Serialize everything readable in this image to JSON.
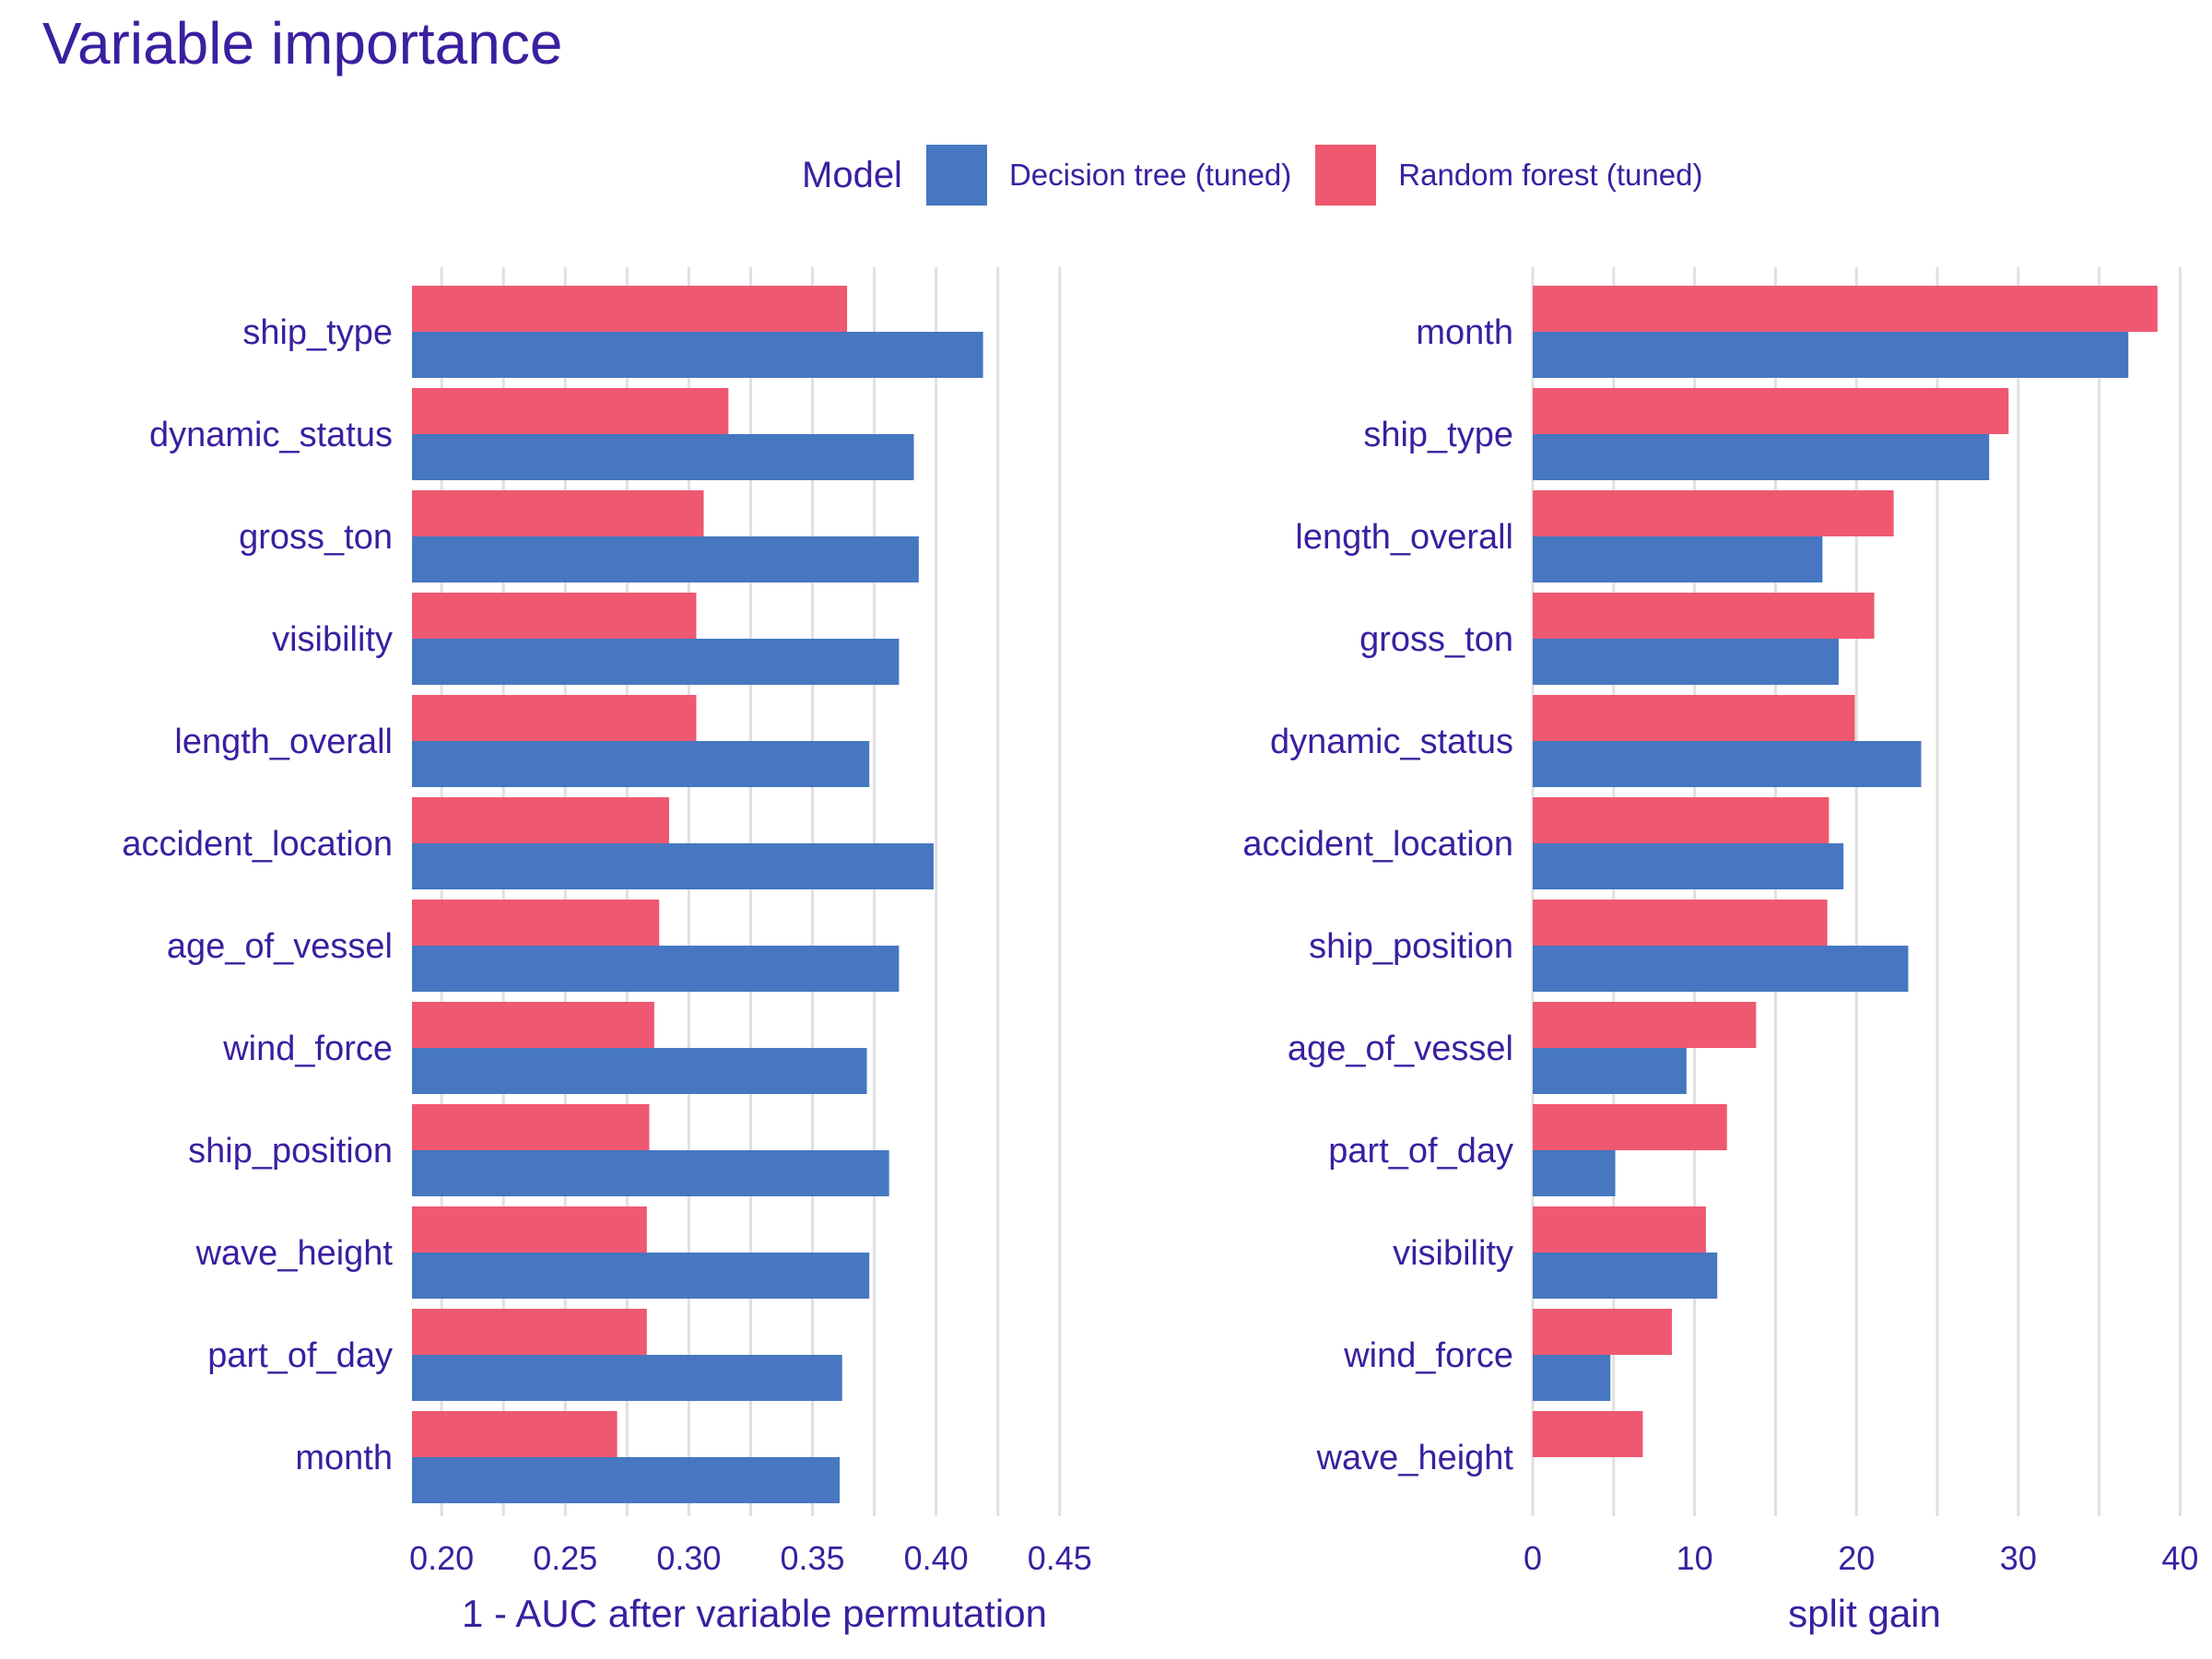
{
  "title": "Variable importance",
  "legend": {
    "title": "Model",
    "items": [
      {
        "label": "Decision tree (tuned)",
        "color": "#4677c0"
      },
      {
        "label": "Random forest (tuned)",
        "color": "#ef5871"
      }
    ]
  },
  "chart_data": [
    {
      "type": "bar",
      "orientation": "horizontal",
      "xlabel": "1 - AUC after variable permutation",
      "xlim": [
        0.188,
        0.465
      ],
      "xticks": [
        0.2,
        0.25,
        0.3,
        0.35,
        0.4,
        0.45
      ],
      "xtick_labels": [
        "0.20",
        "0.25",
        "0.30",
        "0.35",
        "0.40",
        "0.45"
      ],
      "categories": [
        "ship_type",
        "dynamic_status",
        "gross_ton",
        "visibility",
        "length_overall",
        "accident_location",
        "age_of_vessel",
        "wind_force",
        "ship_position",
        "wave_height",
        "part_of_day",
        "month"
      ],
      "series": [
        {
          "name": "Random forest (tuned)",
          "color": "#ef5871",
          "values": [
            0.364,
            0.316,
            0.306,
            0.303,
            0.303,
            0.292,
            0.288,
            0.286,
            0.284,
            0.283,
            0.283,
            0.271
          ]
        },
        {
          "name": "Decision tree (tuned)",
          "color": "#4677c0",
          "values": [
            0.419,
            0.391,
            0.393,
            0.385,
            0.373,
            0.399,
            0.385,
            0.372,
            0.381,
            0.373,
            0.362,
            0.361
          ]
        }
      ],
      "grid": true
    },
    {
      "type": "bar",
      "orientation": "horizontal",
      "xlabel": "split gain",
      "xlim": [
        0,
        41
      ],
      "xticks": [
        0,
        10,
        20,
        30,
        40
      ],
      "xtick_labels": [
        "0",
        "10",
        "20",
        "30",
        "40"
      ],
      "categories": [
        "month",
        "ship_type",
        "length_overall",
        "gross_ton",
        "dynamic_status",
        "accident_location",
        "ship_position",
        "age_of_vessel",
        "part_of_day",
        "visibility",
        "wind_force",
        "wave_height"
      ],
      "series": [
        {
          "name": "Random forest (tuned)",
          "color": "#ef5871",
          "values": [
            38.6,
            29.4,
            22.3,
            21.1,
            19.9,
            18.3,
            18.2,
            13.8,
            12.0,
            10.7,
            8.6,
            6.8
          ]
        },
        {
          "name": "Decision tree (tuned)",
          "color": "#4677c0",
          "values": [
            36.8,
            28.2,
            17.9,
            18.9,
            24.0,
            19.2,
            23.2,
            9.5,
            5.1,
            11.4,
            4.8,
            0
          ]
        }
      ],
      "grid": true
    }
  ]
}
